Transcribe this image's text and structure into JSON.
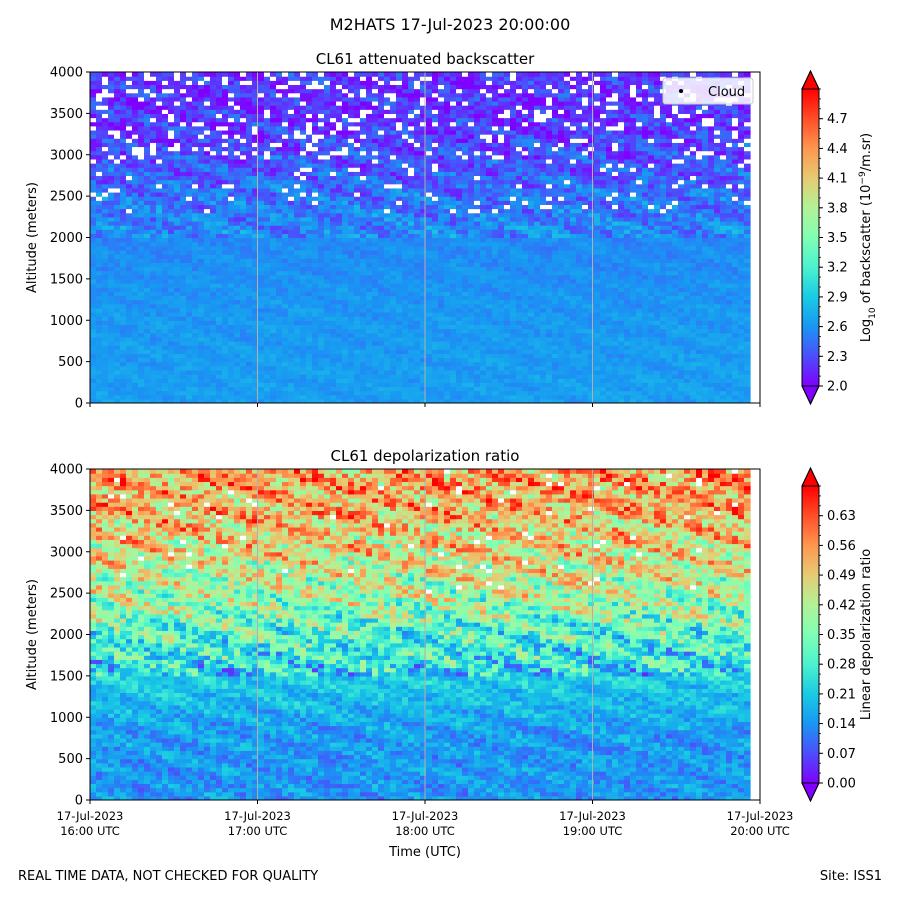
{
  "figure": {
    "suptitle": "M2HATS 17-Jul-2023 20:00:00",
    "footer_left": "REAL TIME DATA, NOT CHECKED FOR QUALITY",
    "footer_right": "Site: ISS1"
  },
  "chart_data": [
    {
      "type": "heatmap",
      "title": "CL61 attenuated backscatter",
      "xlabel": "",
      "ylabel": "Altitude (meters)",
      "ylim": [
        0,
        4000
      ],
      "yticks": [
        0,
        500,
        1000,
        1500,
        2000,
        2500,
        3000,
        3500,
        4000
      ],
      "xlim": [
        "2023-07-17 16:00 UTC",
        "2023-07-17 20:00 UTC"
      ],
      "xtick_labels_shown": false,
      "grid": "vertical lines at each hour",
      "colormap": "rainbow",
      "colorbar": {
        "label_prefix": "Log",
        "label_sub": "10",
        "label_mid": " of backscatter (10",
        "label_sup": "−9",
        "label_suffix": "/m.sr)",
        "range": [
          2.0,
          5.0
        ],
        "ticks": [
          "2.0",
          "2.3",
          "2.6",
          "2.9",
          "3.2",
          "3.5",
          "3.8",
          "4.1",
          "4.4",
          "4.7"
        ],
        "extend": "both"
      },
      "legend": {
        "entries": [
          "Cloud"
        ],
        "placement": "upper right",
        "marker": "black dot"
      },
      "profile": [
        {
          "altitude": 0,
          "value": 2.65
        },
        {
          "altitude": 1000,
          "value": 2.62
        },
        {
          "altitude": 2000,
          "value": 2.55
        },
        {
          "altitude": 2500,
          "value": 2.45
        },
        {
          "altitude": 3000,
          "value": 2.3
        },
        {
          "altitude": 3500,
          "value": 2.2
        },
        {
          "altitude": 4000,
          "value": 2.2
        }
      ],
      "missing_data": "white gaps scattered above ~2300 m",
      "data_end": "2023-07-17 19:56 UTC"
    },
    {
      "type": "heatmap",
      "title": "CL61 depolarization ratio",
      "xlabel": "Time (UTC)",
      "ylabel": "Altitude (meters)",
      "ylim": [
        0,
        4000
      ],
      "yticks": [
        0,
        500,
        1000,
        1500,
        2000,
        2500,
        3000,
        3500,
        4000
      ],
      "xticks": [
        {
          "date": "17-Jul-2023",
          "time": "16:00 UTC"
        },
        {
          "date": "17-Jul-2023",
          "time": "17:00 UTC"
        },
        {
          "date": "17-Jul-2023",
          "time": "18:00 UTC"
        },
        {
          "date": "17-Jul-2023",
          "time": "19:00 UTC"
        },
        {
          "date": "17-Jul-2023",
          "time": "20:00 UTC"
        }
      ],
      "grid": "vertical lines at each hour",
      "colormap": "rainbow",
      "colorbar": {
        "label": "Linear depolarization ratio",
        "range": [
          0.0,
          0.7
        ],
        "ticks": [
          "0.00",
          "0.07",
          "0.14",
          "0.21",
          "0.28",
          "0.35",
          "0.42",
          "0.49",
          "0.56",
          "0.63"
        ],
        "extend": "both"
      },
      "profile": [
        {
          "altitude": 0,
          "value": 0.14
        },
        {
          "altitude": 800,
          "value": 0.15
        },
        {
          "altitude": 1500,
          "value": 0.22
        },
        {
          "altitude": 2000,
          "value": 0.3
        },
        {
          "altitude": 2500,
          "value": 0.4
        },
        {
          "altitude": 3000,
          "value": 0.46
        },
        {
          "altitude": 3500,
          "value": 0.52
        },
        {
          "altitude": 4000,
          "value": 0.55
        }
      ],
      "missing_data": "sparse white gaps above ~2500 m",
      "data_end": "2023-07-17 19:56 UTC"
    }
  ]
}
